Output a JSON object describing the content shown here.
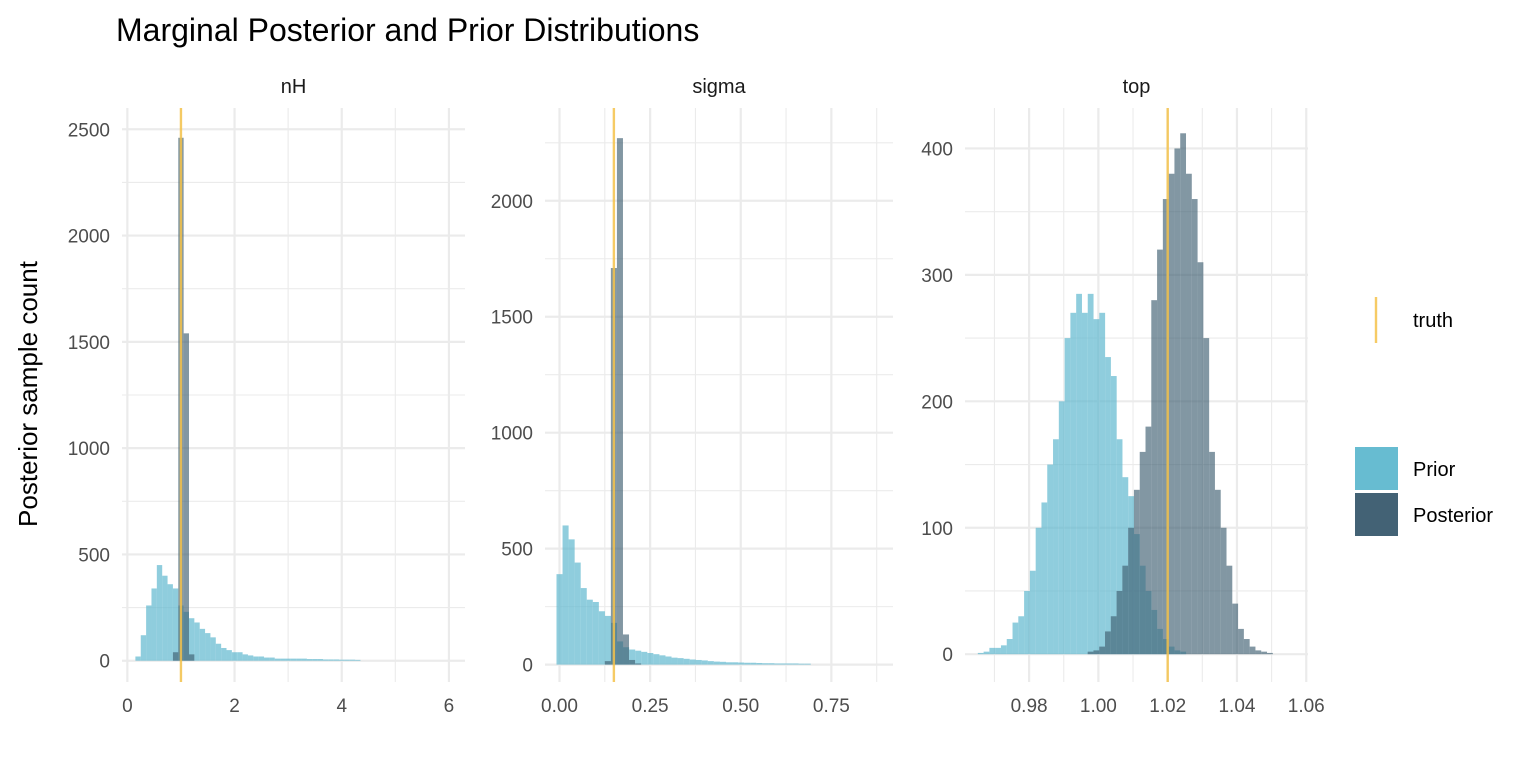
{
  "chart_data": {
    "type": "bar",
    "title": "Marginal Posterior and Prior Distributions",
    "ylabel": "Posterior sample count",
    "xlabel": "",
    "grid": true,
    "legend_position": "right",
    "colors": {
      "prior": "#5fb8cf",
      "posterior": "#3f5f72",
      "truth": "#f5c24a"
    },
    "legend": {
      "truth_label": "truth",
      "fill": [
        {
          "key": "prior",
          "label": "Prior"
        },
        {
          "key": "posterior",
          "label": "Posterior"
        }
      ]
    },
    "panels": [
      {
        "strip": "nH",
        "xlim": [
          -0.1,
          6.3
        ],
        "ylim": [
          -100,
          2600
        ],
        "xticks": [
          {
            "v": 0,
            "label": "0"
          },
          {
            "v": 2,
            "label": "2"
          },
          {
            "v": 4,
            "label": "4"
          },
          {
            "v": 6,
            "label": "6"
          }
        ],
        "yticks": [
          {
            "v": 0,
            "label": "0"
          },
          {
            "v": 500,
            "label": "500"
          },
          {
            "v": 1000,
            "label": "1000"
          },
          {
            "v": 1500,
            "label": "1500"
          },
          {
            "v": 2000,
            "label": "2000"
          },
          {
            "v": 2500,
            "label": "2500"
          }
        ],
        "truth": 1.0,
        "bin_width": 0.1,
        "prior": {
          "start": 0.15,
          "counts": [
            20,
            120,
            260,
            340,
            450,
            400,
            360,
            340,
            260,
            230,
            200,
            180,
            150,
            130,
            110,
            80,
            60,
            50,
            40,
            40,
            30,
            25,
            20,
            20,
            15,
            15,
            10,
            10,
            10,
            10,
            10,
            10,
            8,
            8,
            8,
            6,
            6,
            6,
            5,
            5,
            5,
            4
          ]
        },
        "posterior": {
          "start": 0.85,
          "counts": [
            40,
            2460,
            1540,
            30
          ]
        }
      },
      {
        "strip": "sigma",
        "xlim": [
          -0.04,
          0.92
        ],
        "ylim": [
          -75,
          2400
        ],
        "xticks": [
          {
            "v": 0,
            "label": "0.00"
          },
          {
            "v": 0.25,
            "label": "0.25"
          },
          {
            "v": 0.5,
            "label": "0.50"
          },
          {
            "v": 0.75,
            "label": "0.75"
          }
        ],
        "yticks": [
          {
            "v": 0,
            "label": "0"
          },
          {
            "v": 500,
            "label": "500"
          },
          {
            "v": 1000,
            "label": "1000"
          },
          {
            "v": 1500,
            "label": "1500"
          },
          {
            "v": 2000,
            "label": "2000"
          }
        ],
        "truth": 0.15,
        "bin_width": 0.0167,
        "prior": {
          "start": -0.0083,
          "counts": [
            390,
            600,
            540,
            440,
            330,
            280,
            270,
            230,
            210,
            180,
            100,
            75,
            65,
            60,
            55,
            50,
            45,
            40,
            35,
            30,
            28,
            25,
            22,
            20,
            18,
            15,
            13,
            12,
            10,
            10,
            9,
            8,
            8,
            7,
            6,
            6,
            5,
            5,
            5,
            5,
            4,
            4
          ]
        },
        "posterior": {
          "start": 0.125,
          "counts": [
            15,
            1710,
            2270,
            130,
            20,
            5
          ]
        }
      },
      {
        "strip": "top",
        "xlim": [
          0.9615,
          1.0605
        ],
        "ylim": [
          -22,
          432
        ],
        "xticks": [
          {
            "v": 0.98,
            "label": "0.98"
          },
          {
            "v": 1.0,
            "label": "1.00"
          },
          {
            "v": 1.02,
            "label": "1.02"
          },
          {
            "v": 1.04,
            "label": "1.04"
          },
          {
            "v": 1.06,
            "label": "1.06"
          }
        ],
        "yticks": [
          {
            "v": 0,
            "label": "0"
          },
          {
            "v": 100,
            "label": "100"
          },
          {
            "v": 200,
            "label": "200"
          },
          {
            "v": 300,
            "label": "300"
          },
          {
            "v": 400,
            "label": "400"
          }
        ],
        "truth": 1.02,
        "bin_width": 0.00167,
        "prior": {
          "start": 0.9652,
          "counts": [
            1,
            2,
            5,
            5,
            7,
            12,
            25,
            30,
            50,
            66,
            100,
            120,
            150,
            170,
            200,
            250,
            270,
            285,
            270,
            285,
            265,
            270,
            235,
            220,
            170,
            140,
            125,
            95,
            70,
            50,
            35,
            20,
            12,
            6,
            3,
            2
          ]
        },
        "posterior": {
          "start": 0.9969,
          "counts": [
            2,
            3,
            6,
            18,
            30,
            50,
            70,
            100,
            130,
            160,
            180,
            280,
            320,
            360,
            380,
            400,
            412,
            380,
            360,
            310,
            250,
            160,
            130,
            100,
            70,
            40,
            20,
            12,
            6,
            3,
            2,
            1
          ]
        }
      }
    ]
  }
}
